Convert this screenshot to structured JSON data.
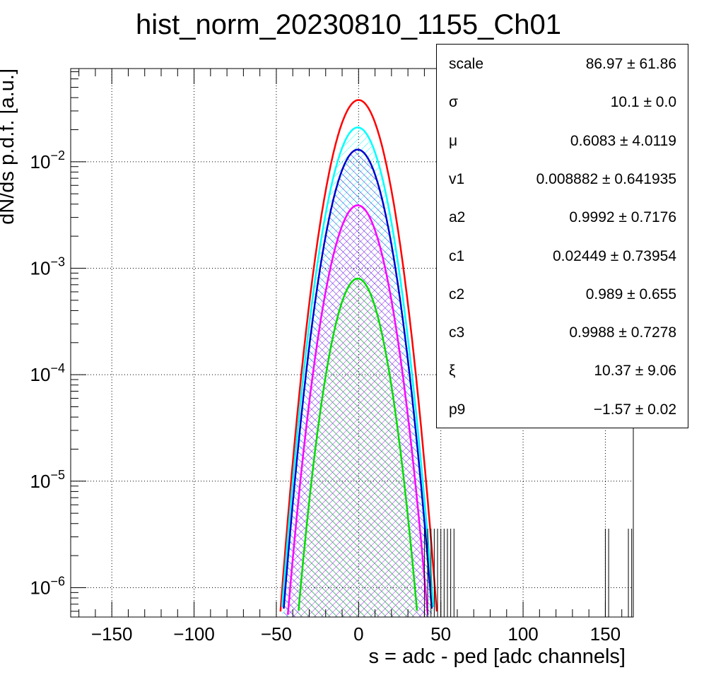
{
  "chart_data": {
    "type": "line",
    "title": "hist_norm_20230810_1155_Ch01",
    "xlabel": "s = adc - ped [adc channels]",
    "ylabel": "dN/ds p.d.f. [a.u.]",
    "xlim": [
      -175,
      167
    ],
    "ylim": [
      5.3e-07,
      0.075
    ],
    "yscale": "log",
    "grid": true,
    "x_ticks": [
      -150,
      -100,
      -50,
      0,
      50,
      100,
      150
    ],
    "x_tick_labels": [
      "−150",
      "−100",
      "−50",
      "0",
      "50",
      "100",
      "150"
    ],
    "y_ticks": [
      {
        "value": 0.01,
        "base": "10",
        "exp": "−2"
      },
      {
        "value": 0.001,
        "base": "10",
        "exp": "−3"
      },
      {
        "value": 0.0001,
        "base": "10",
        "exp": "−4"
      },
      {
        "value": 1e-05,
        "base": "10",
        "exp": "−5"
      },
      {
        "value": 1e-06,
        "base": "10",
        "exp": "−6"
      }
    ],
    "series": [
      {
        "color": "#ff0000",
        "peak": 0.038,
        "mu": 0.0,
        "sigma": 10.1,
        "hatch": false
      },
      {
        "color": "#00ffff",
        "peak": 0.021,
        "mu": -0.5,
        "sigma": 10.1,
        "hatch": true
      },
      {
        "color": "#0000cc",
        "peak": 0.013,
        "mu": -0.5,
        "sigma": 10.1,
        "hatch": true
      },
      {
        "color": "#ff00ff",
        "peak": 0.0039,
        "mu": -0.5,
        "sigma": 10.1,
        "hatch": true
      },
      {
        "color": "#00dd00",
        "peak": 0.0008,
        "mu": -0.5,
        "sigma": 9.5,
        "hatch": true
      }
    ],
    "data_tail_bins": [
      40,
      42,
      44,
      46,
      48,
      50,
      52,
      54,
      56,
      58,
      150,
      152,
      164,
      166
    ],
    "stats": [
      {
        "name": "scale",
        "value": "86.97 ± 61.86"
      },
      {
        "name": "σ",
        "value": "10.1 ± 0.0"
      },
      {
        "name": "μ",
        "value": "0.6083 ± 4.0119"
      },
      {
        "name": "v1",
        "value": "0.008882 ± 0.641935"
      },
      {
        "name": "a2",
        "value": "0.9992 ± 0.7176"
      },
      {
        "name": "c1",
        "value": "0.02449 ± 0.73954"
      },
      {
        "name": "c2",
        "value": "0.989 ± 0.655"
      },
      {
        "name": "c3",
        "value": "0.9988 ± 0.7278"
      },
      {
        "name": "ξ",
        "value": "10.37 ± 9.06"
      },
      {
        "name": "p9",
        "value": "−1.57 ± 0.02"
      }
    ]
  }
}
